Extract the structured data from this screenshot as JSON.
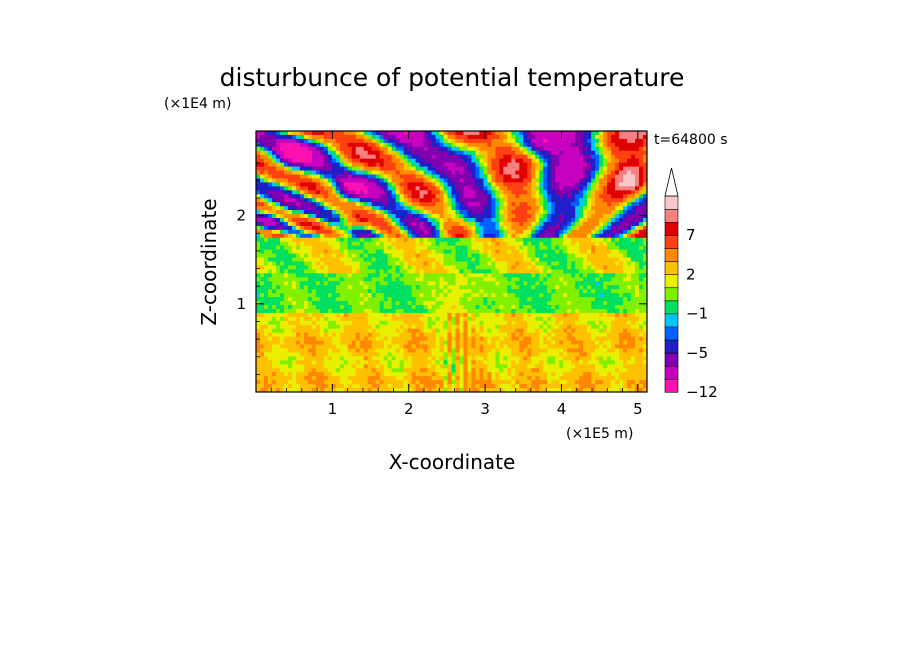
{
  "chart_data": {
    "type": "heatmap",
    "title": "disturbunce of potential temperature",
    "xlabel": "X-coordinate",
    "ylabel": "Z-coordinate",
    "x_scale_label": "(×1E5 m)",
    "y_scale_label": "(×1E4 m)",
    "time_label": "t=64800 s",
    "xlim": [
      0,
      5.12
    ],
    "ylim": [
      0,
      2.96
    ],
    "x_ticks": [
      1,
      2,
      3,
      4,
      5
    ],
    "x_tick_labels": [
      "1",
      "2",
      "3",
      "4",
      "5"
    ],
    "y_ticks": [
      1,
      2
    ],
    "y_tick_labels": [
      "1",
      "2"
    ],
    "colorbar": {
      "levels": [
        -12,
        -10,
        -7,
        -5,
        -3,
        -2,
        -1,
        0,
        1,
        2,
        3,
        5,
        7,
        9,
        12
      ],
      "labels": [
        {
          "value": -12,
          "text": "−12"
        },
        {
          "value": -5,
          "text": "−5"
        },
        {
          "value": -1,
          "text": "−1"
        },
        {
          "value": 2,
          "text": "2"
        },
        {
          "value": 7,
          "text": "7"
        }
      ],
      "colors": [
        "#ff10b0",
        "#c800c0",
        "#8000b0",
        "#2020c8",
        "#0060ff",
        "#00c8ff",
        "#00e060",
        "#80f000",
        "#e8f000",
        "#ffc000",
        "#ff8800",
        "#ff4010",
        "#e00000",
        "#f88080",
        "#f8c8c8"
      ],
      "extend": "max"
    }
  }
}
